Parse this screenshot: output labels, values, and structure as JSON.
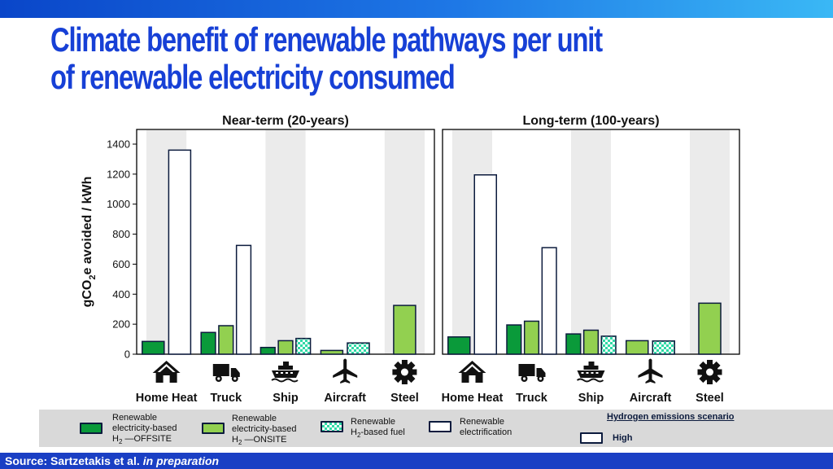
{
  "title_line1": "Climate benefit of renewable pathways per unit",
  "title_line2": "of renewable electricity consumed",
  "footer": {
    "source": "Source: Sartzetakis et al.",
    "status": "in preparation"
  },
  "colors": {
    "offsite": "#0a9a3a",
    "onsite": "#92d050",
    "h2fuel_a": "#30d9a6",
    "h2fuel_b": "#ffffff",
    "electrification": "#ffffff",
    "outline": "#0c1b3d",
    "title": "#1740d6",
    "bands": "#ebebeb"
  },
  "icons": [
    "home-icon",
    "truck-icon",
    "ship-icon",
    "airplane-icon",
    "gear-icon"
  ],
  "legend": {
    "offsite": {
      "line1": "Renewable",
      "line2": "electricity-based",
      "line3": "H",
      "sub": "2",
      "line3b": " —OFFSITE"
    },
    "onsite": {
      "line1": "Renewable",
      "line2": "electricity-based",
      "line3": "H",
      "sub": "2",
      "line3b": " —ONSITE"
    },
    "h2fuel": {
      "line1": "Renewable",
      "line2a": "H",
      "sub": "2",
      "line2b": "-based fuel"
    },
    "electrification": {
      "line1": "Renewable",
      "line2": "electrification"
    },
    "scenario_title": "Hydrogen emissions scenario",
    "scenario_high": "High"
  },
  "chart_data": [
    {
      "type": "bar",
      "title": "Near-term (20-years)",
      "ylabel": "gCO2e avoided / kWh",
      "ylim": [
        0,
        1400
      ],
      "yticks": [
        0,
        200,
        400,
        600,
        800,
        1000,
        1200,
        1400
      ],
      "categories": [
        "Home Heat",
        "Truck",
        "Ship",
        "Aircraft",
        "Steel"
      ],
      "shaded": [
        true,
        false,
        true,
        false,
        true
      ],
      "series": [
        {
          "name": "Renewable electricity-based H2 —OFFSITE",
          "values": [
            85,
            145,
            45,
            null,
            null
          ]
        },
        {
          "name": "Renewable electricity-based H2 —ONSITE",
          "values": [
            null,
            190,
            90,
            25,
            325
          ]
        },
        {
          "name": "Renewable H2-based fuel",
          "values": [
            null,
            null,
            105,
            75,
            null
          ]
        },
        {
          "name": "Renewable electrification",
          "values": [
            1360,
            725,
            null,
            null,
            null
          ]
        }
      ]
    },
    {
      "type": "bar",
      "title": "Long-term (100-years)",
      "ylabel": "",
      "ylim": [
        0,
        1400
      ],
      "yticks": [],
      "categories": [
        "Home Heat",
        "Truck",
        "Ship",
        "Aircraft",
        "Steel"
      ],
      "shaded": [
        true,
        false,
        true,
        false,
        true
      ],
      "series": [
        {
          "name": "Renewable electricity-based H2 —OFFSITE",
          "values": [
            115,
            195,
            135,
            null,
            null
          ]
        },
        {
          "name": "Renewable electricity-based H2 —ONSITE",
          "values": [
            null,
            220,
            160,
            90,
            340
          ]
        },
        {
          "name": "Renewable H2-based fuel",
          "values": [
            null,
            null,
            120,
            88,
            null
          ]
        },
        {
          "name": "Renewable electrification",
          "values": [
            1195,
            710,
            null,
            null,
            null
          ]
        }
      ]
    }
  ]
}
